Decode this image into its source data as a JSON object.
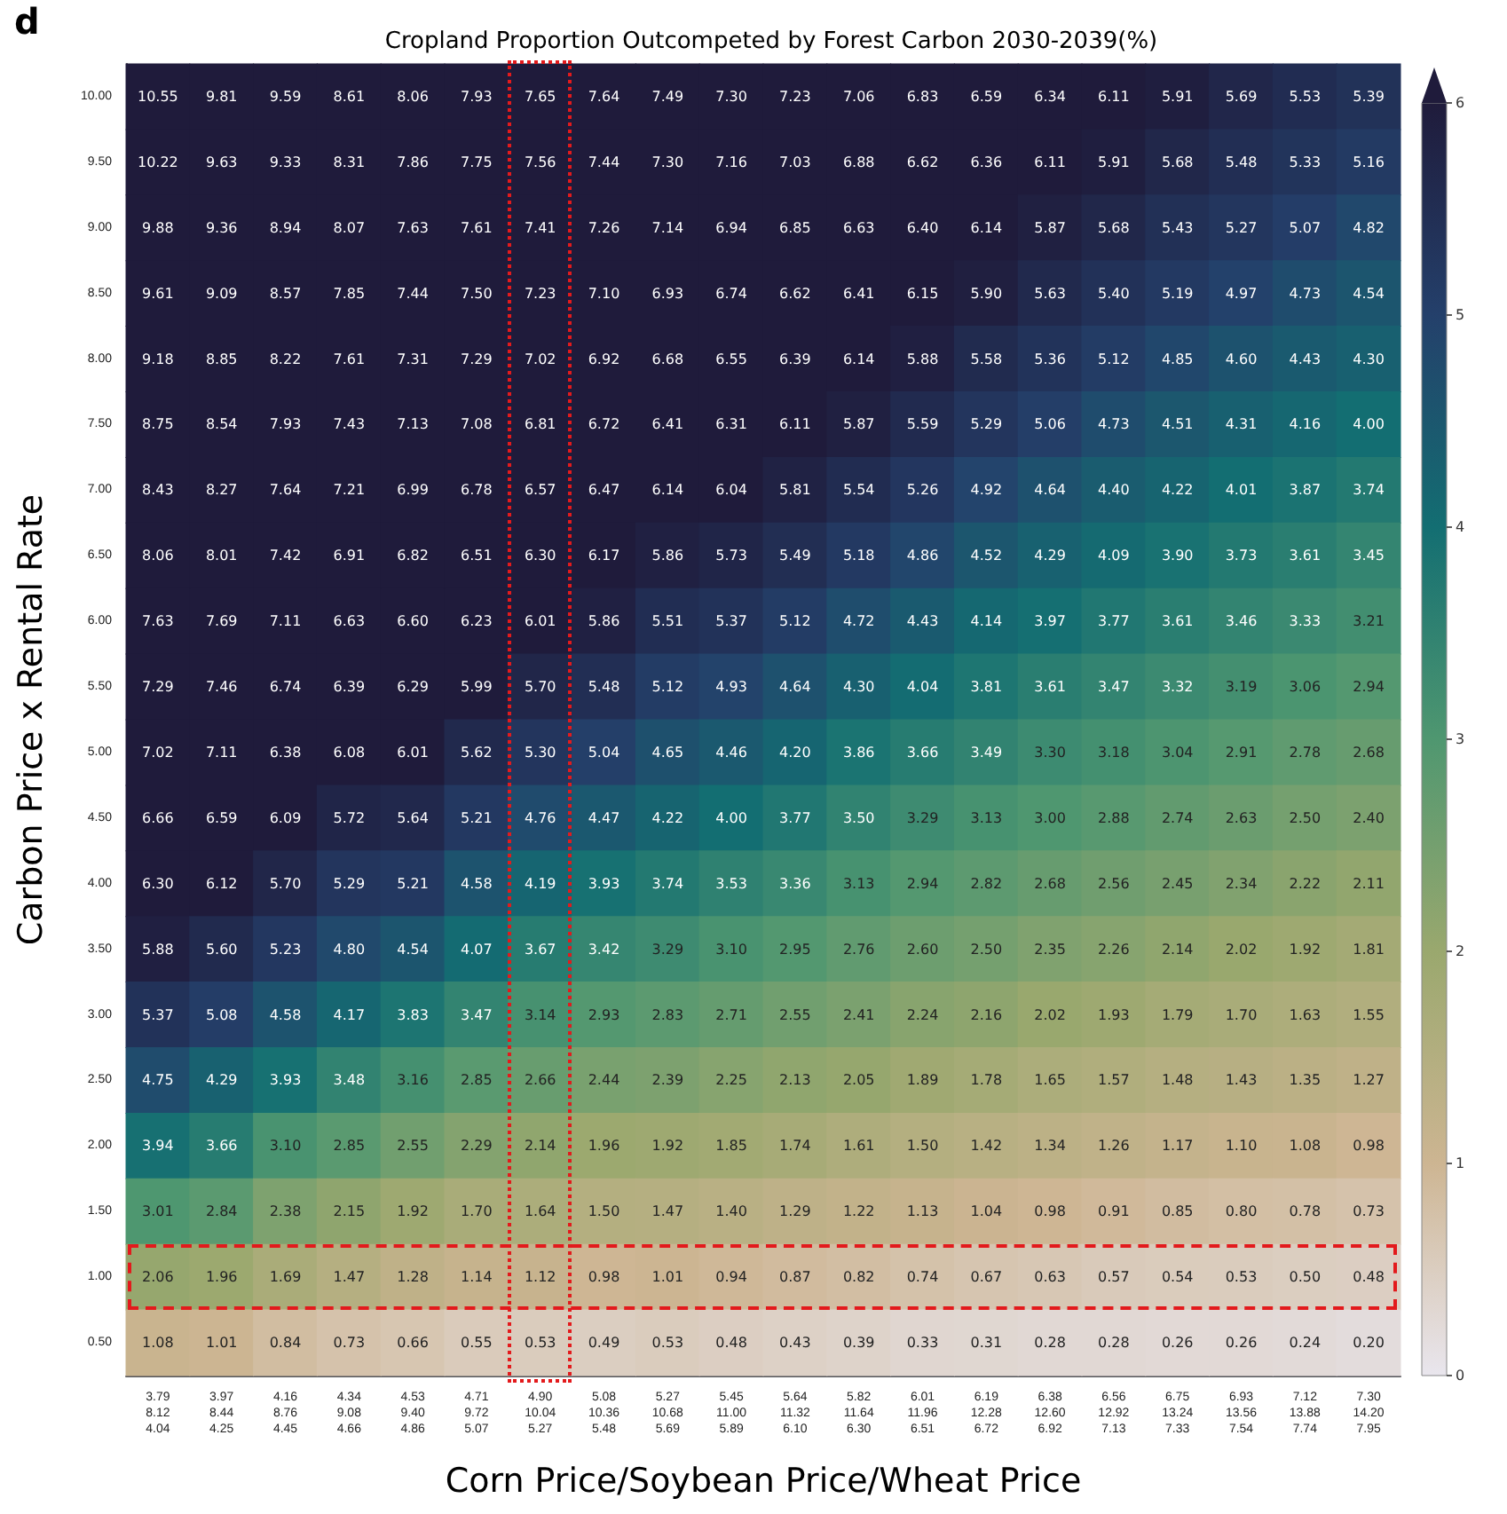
{
  "chart_data": {
    "type": "heatmap",
    "title": "Cropland Proportion Outcompeted by Forest Carbon 2030-2039(%)",
    "xlabel": "Corn Price/Soybean Price/Wheat Price",
    "ylabel": "Carbon Price x Rental Rate",
    "annotations": [
      "d"
    ],
    "categories": [
      "3.79\n8.12\n4.04",
      "3.97\n8.44\n4.25",
      "4.16\n8.76\n4.45",
      "4.34\n9.08\n4.66",
      "4.53\n9.40\n4.86",
      "4.71\n9.72\n5.07",
      "4.90\n10.04\n5.27",
      "5.08\n10.36\n5.48",
      "5.27\n10.68\n5.69",
      "5.45\n11.00\n5.89",
      "5.64\n11.32\n6.10",
      "5.82\n11.64\n6.30",
      "6.01\n11.96\n6.51",
      "6.19\n12.28\n6.72",
      "6.38\n12.60\n6.92",
      "6.56\n12.92\n7.13",
      "6.75\n13.24\n7.33",
      "6.93\n13.56\n7.54",
      "7.12\n13.88\n7.74",
      "7.30\n14.20\n7.95"
    ],
    "y_categories": [
      "10.00",
      "9.50",
      "9.00",
      "8.50",
      "8.00",
      "7.50",
      "7.00",
      "6.50",
      "6.00",
      "5.50",
      "5.00",
      "4.50",
      "4.00",
      "3.50",
      "3.00",
      "2.50",
      "2.00",
      "1.50",
      "1.00",
      "0.50"
    ],
    "cells": [
      [
        10.55,
        9.81,
        9.59,
        8.61,
        8.06,
        7.93,
        7.65,
        7.64,
        7.49,
        7.3,
        7.23,
        7.06,
        6.83,
        6.59,
        6.34,
        6.11,
        5.91,
        5.69,
        5.53,
        5.39
      ],
      [
        10.22,
        9.63,
        9.33,
        8.31,
        7.86,
        7.75,
        7.56,
        7.44,
        7.3,
        7.16,
        7.03,
        6.88,
        6.62,
        6.36,
        6.11,
        5.91,
        5.68,
        5.48,
        5.33,
        5.16
      ],
      [
        9.88,
        9.36,
        8.94,
        8.07,
        7.63,
        7.61,
        7.41,
        7.26,
        7.14,
        6.94,
        6.85,
        6.63,
        6.4,
        6.14,
        5.87,
        5.68,
        5.43,
        5.27,
        5.07,
        4.82
      ],
      [
        9.61,
        9.09,
        8.57,
        7.85,
        7.44,
        7.5,
        7.23,
        7.1,
        6.93,
        6.74,
        6.62,
        6.41,
        6.15,
        5.9,
        5.63,
        5.4,
        5.19,
        4.97,
        4.73,
        4.54
      ],
      [
        9.18,
        8.85,
        8.22,
        7.61,
        7.31,
        7.29,
        7.02,
        6.92,
        6.68,
        6.55,
        6.39,
        6.14,
        5.88,
        5.58,
        5.36,
        5.12,
        4.85,
        4.6,
        4.43,
        4.3
      ],
      [
        8.75,
        8.54,
        7.93,
        7.43,
        7.13,
        7.08,
        6.81,
        6.72,
        6.41,
        6.31,
        6.11,
        5.87,
        5.59,
        5.29,
        5.06,
        4.73,
        4.51,
        4.31,
        4.16,
        4.0
      ],
      [
        8.43,
        8.27,
        7.64,
        7.21,
        6.99,
        6.78,
        6.57,
        6.47,
        6.14,
        6.04,
        5.81,
        5.54,
        5.26,
        4.92,
        4.64,
        4.4,
        4.22,
        4.01,
        3.87,
        3.74
      ],
      [
        8.06,
        8.01,
        7.42,
        6.91,
        6.82,
        6.51,
        6.3,
        6.17,
        5.86,
        5.73,
        5.49,
        5.18,
        4.86,
        4.52,
        4.29,
        4.09,
        3.9,
        3.73,
        3.61,
        3.45
      ],
      [
        7.63,
        7.69,
        7.11,
        6.63,
        6.6,
        6.23,
        6.01,
        5.86,
        5.51,
        5.37,
        5.12,
        4.72,
        4.43,
        4.14,
        3.97,
        3.77,
        3.61,
        3.46,
        3.33,
        3.21
      ],
      [
        7.29,
        7.46,
        6.74,
        6.39,
        6.29,
        5.99,
        5.7,
        5.48,
        5.12,
        4.93,
        4.64,
        4.3,
        4.04,
        3.81,
        3.61,
        3.47,
        3.32,
        3.19,
        3.06,
        2.94
      ],
      [
        7.02,
        7.11,
        6.38,
        6.08,
        6.01,
        5.62,
        5.3,
        5.04,
        4.65,
        4.46,
        4.2,
        3.86,
        3.66,
        3.49,
        3.3,
        3.18,
        3.04,
        2.91,
        2.78,
        2.68
      ],
      [
        6.66,
        6.59,
        6.09,
        5.72,
        5.64,
        5.21,
        4.76,
        4.47,
        4.22,
        4.0,
        3.77,
        3.5,
        3.29,
        3.13,
        3.0,
        2.88,
        2.74,
        2.63,
        2.5,
        2.4
      ],
      [
        6.3,
        6.12,
        5.7,
        5.29,
        5.21,
        4.58,
        4.19,
        3.93,
        3.74,
        3.53,
        3.36,
        3.13,
        2.94,
        2.82,
        2.68,
        2.56,
        2.45,
        2.34,
        2.22,
        2.11
      ],
      [
        5.88,
        5.6,
        5.23,
        4.8,
        4.54,
        4.07,
        3.67,
        3.42,
        3.29,
        3.1,
        2.95,
        2.76,
        2.6,
        2.5,
        2.35,
        2.26,
        2.14,
        2.02,
        1.92,
        1.81
      ],
      [
        5.37,
        5.08,
        4.58,
        4.17,
        3.83,
        3.47,
        3.14,
        2.93,
        2.83,
        2.71,
        2.55,
        2.41,
        2.24,
        2.16,
        2.02,
        1.93,
        1.79,
        1.7,
        1.63,
        1.55
      ],
      [
        4.75,
        4.29,
        3.93,
        3.48,
        3.16,
        2.85,
        2.66,
        2.44,
        2.39,
        2.25,
        2.13,
        2.05,
        1.89,
        1.78,
        1.65,
        1.57,
        1.48,
        1.43,
        1.35,
        1.27
      ],
      [
        3.94,
        3.66,
        3.1,
        2.85,
        2.55,
        2.29,
        2.14,
        1.96,
        1.92,
        1.85,
        1.74,
        1.61,
        1.5,
        1.42,
        1.34,
        1.26,
        1.17,
        1.1,
        1.08,
        0.98
      ],
      [
        3.01,
        2.84,
        2.38,
        2.15,
        1.92,
        1.7,
        1.64,
        1.5,
        1.47,
        1.4,
        1.29,
        1.22,
        1.13,
        1.04,
        0.98,
        0.91,
        0.85,
        0.8,
        0.78,
        0.73
      ],
      [
        2.06,
        1.96,
        1.69,
        1.47,
        1.28,
        1.14,
        1.12,
        0.98,
        1.01,
        0.94,
        0.87,
        0.82,
        0.74,
        0.67,
        0.63,
        0.57,
        0.54,
        0.53,
        0.5,
        0.48
      ],
      [
        1.08,
        1.01,
        0.84,
        0.73,
        0.66,
        0.55,
        0.53,
        0.49,
        0.53,
        0.48,
        0.43,
        0.39,
        0.33,
        0.31,
        0.28,
        0.28,
        0.26,
        0.26,
        0.24,
        0.2
      ]
    ],
    "cell_labels": [
      [
        "10.55",
        "9.81",
        "9.59",
        "8.61",
        "8.06",
        "7.93",
        "7.65",
        "7.64",
        "7.49",
        "7.30",
        "7.23",
        "7.06",
        "6.83",
        "6.59",
        "6.34",
        "6.11",
        "5.91",
        "5.69",
        "5.53",
        "5.39"
      ],
      [
        "10.22",
        "9.63",
        "9.33",
        "8.31",
        "7.86",
        "7.75",
        "7.56",
        "7.44",
        "7.30",
        "7.16",
        "7.03",
        "6.88",
        "6.62",
        "6.36",
        "6.11",
        "5.91",
        "5.68",
        "5.48",
        "5.33",
        "5.16"
      ],
      [
        "9.88",
        "9.36",
        "8.94",
        "8.07",
        "7.63",
        "7.61",
        "7.41",
        "7.26",
        "7.14",
        "6.94",
        "6.85",
        "6.63",
        "6.40",
        "6.14",
        "5.87",
        "5.68",
        "5.43",
        "5.27",
        "5.07",
        "4.82"
      ],
      [
        "9.61",
        "9.09",
        "8.57",
        "7.85",
        "7.44",
        "7.50",
        "7.23",
        "7.10",
        "6.93",
        "6.74",
        "6.62",
        "6.41",
        "6.15",
        "5.90",
        "5.63",
        "5.40",
        "5.19",
        "4.97",
        "4.73",
        "4.54"
      ],
      [
        "9.18",
        "8.85",
        "8.22",
        "7.61",
        "7.31",
        "7.29",
        "7.02",
        "6.92",
        "6.68",
        "6.55",
        "6.39",
        "6.14",
        "5.88",
        "5.58",
        "5.36",
        "5.12",
        "4.85",
        "4.60",
        "4.43",
        "4.30"
      ],
      [
        "8.75",
        "8.54",
        "7.93",
        "7.43",
        "7.13",
        "7.08",
        "6.81",
        "6.72",
        "6.41",
        "6.31",
        "6.11",
        "5.87",
        "5.59",
        "5.29",
        "5.06",
        "4.73",
        "4.51",
        "4.31",
        "4.16",
        "4.00"
      ],
      [
        "8.43",
        "8.27",
        "7.64",
        "7.21",
        "6.99",
        "6.78",
        "6.57",
        "6.47",
        "6.14",
        "6.04",
        "5.81",
        "5.54",
        "5.26",
        "4.92",
        "4.64",
        "4.40",
        "4.22",
        "4.01",
        "3.87",
        "3.74"
      ],
      [
        "8.06",
        "8.01",
        "7.42",
        "6.91",
        "6.82",
        "6.51",
        "6.30",
        "6.17",
        "5.86",
        "5.73",
        "5.49",
        "5.18",
        "4.86",
        "4.52",
        "4.29",
        "4.09",
        "3.90",
        "3.73",
        "3.61",
        "3.45"
      ],
      [
        "7.63",
        "7.69",
        "7.11",
        "6.63",
        "6.60",
        "6.23",
        "6.01",
        "5.86",
        "5.51",
        "5.37",
        "5.12",
        "4.72",
        "4.43",
        "4.14",
        "3.97",
        "3.77",
        "3.61",
        "3.46",
        "3.33",
        "3.21"
      ],
      [
        "7.29",
        "7.46",
        "6.74",
        "6.39",
        "6.29",
        "5.99",
        "5.70",
        "5.48",
        "5.12",
        "4.93",
        "4.64",
        "4.30",
        "4.04",
        "3.81",
        "3.61",
        "3.47",
        "3.32",
        "3.19",
        "3.06",
        "2.94"
      ],
      [
        "7.02",
        "7.11",
        "6.38",
        "6.08",
        "6.01",
        "5.62",
        "5.30",
        "5.04",
        "4.65",
        "4.46",
        "4.20",
        "3.86",
        "3.66",
        "3.49",
        "3.30",
        "3.18",
        "3.04",
        "2.91",
        "2.78",
        "2.68"
      ],
      [
        "6.66",
        "6.59",
        "6.09",
        "5.72",
        "5.64",
        "5.21",
        "4.76",
        "4.47",
        "4.22",
        "4.00",
        "3.77",
        "3.50",
        "3.29",
        "3.13",
        "3.00",
        "2.88",
        "2.74",
        "2.63",
        "2.50",
        "2.40"
      ],
      [
        "6.30",
        "6.12",
        "5.70",
        "5.29",
        "5.21",
        "4.58",
        "4.19",
        "3.93",
        "3.74",
        "3.53",
        "3.36",
        "3.13",
        "2.94",
        "2.82",
        "2.68",
        "2.56",
        "2.45",
        "2.34",
        "2.22",
        "2.11"
      ],
      [
        "5.88",
        "5.60",
        "5.23",
        "4.80",
        "4.54",
        "4.07",
        "3.67",
        "3.42",
        "3.29",
        "3.10",
        "2.95",
        "2.76",
        "2.60",
        "2.50",
        "2.35",
        "2.26",
        "2.14",
        "2.02",
        "1.92",
        "1.81"
      ],
      [
        "5.37",
        "5.08",
        "4.58",
        "4.17",
        "3.83",
        "3.47",
        "3.14",
        "2.93",
        "2.83",
        "2.71",
        "2.55",
        "2.41",
        "2.24",
        "2.16",
        "2.02",
        "1.93",
        "1.79",
        "1.70",
        "1.63",
        "1.55"
      ],
      [
        "4.75",
        "4.29",
        "3.93",
        "3.48",
        "3.16",
        "2.85",
        "2.66",
        "2.44",
        "2.39",
        "2.25",
        "2.13",
        "2.05",
        "1.89",
        "1.78",
        "1.65",
        "1.57",
        "1.48",
        "1.43",
        "1.35",
        "1.27"
      ],
      [
        "3.94",
        "3.66",
        "3.10",
        "2.85",
        "2.55",
        "2.29",
        "2.14",
        "1.96",
        "1.92",
        "1.85",
        "1.74",
        "1.61",
        "1.50",
        "1.42",
        "1.34",
        "1.26",
        "1.17",
        "1.10",
        "1.08",
        "0.98"
      ],
      [
        "3.01",
        "2.84",
        "2.38",
        "2.15",
        "1.92",
        "1.70",
        "1.64",
        "1.50",
        "1.47",
        "1.40",
        "1.29",
        "1.22",
        "1.13",
        "1.04",
        "0.98",
        "0.91",
        "0.85",
        "0.80",
        "0.78",
        "0.73"
      ],
      [
        "2.06",
        "1.96",
        "1.69",
        "1.47",
        "1.28",
        "1.14",
        "1.12",
        "0.98",
        "1.01",
        "0.94",
        "0.87",
        "0.82",
        "0.74",
        "0.67",
        "0.63",
        "0.57",
        "0.54",
        "0.53",
        "0.50",
        "0.48"
      ],
      [
        "1.08",
        "1.01",
        "0.84",
        "0.73",
        "0.66",
        "0.55",
        "0.53",
        "0.49",
        "0.53",
        "0.48",
        "0.43",
        "0.39",
        "0.33",
        "0.31",
        "0.28",
        "0.28",
        "0.26",
        "0.26",
        "0.24",
        "0.20"
      ]
    ],
    "clim": [
      0,
      6
    ],
    "cticks": [
      0,
      1,
      2,
      3,
      4,
      5,
      6
    ]
  }
}
